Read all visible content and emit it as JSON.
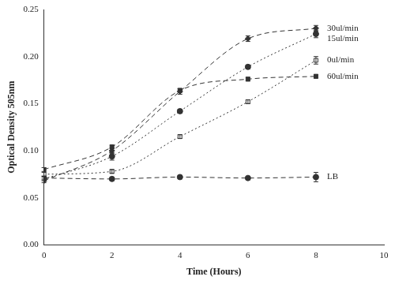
{
  "chart_data": {
    "type": "line",
    "x_label": "Time (Hours)",
    "y_label": "Optical Density 505nm",
    "xlim": [
      0,
      10
    ],
    "xticks": [
      0,
      2,
      4,
      6,
      8,
      10
    ],
    "ylim": [
      0,
      0.25
    ],
    "yticks": [
      {
        "value": 0,
        "label": "0.00"
      },
      {
        "value": 0.05,
        "label": "0.05"
      },
      {
        "value": 0.1,
        "label": "0.10"
      },
      {
        "value": 0.15,
        "label": "0.15"
      },
      {
        "value": 0.2,
        "label": "0.20"
      },
      {
        "value": 0.25,
        "label": "0.25"
      }
    ],
    "grid": false,
    "x": [
      0,
      2,
      4,
      6,
      8
    ],
    "series": [
      {
        "name": "30ul/min",
        "color": "#333333",
        "marker": "diamond",
        "line_style": "dashed",
        "values": [
          0.068,
          0.1,
          0.163,
          0.219,
          0.23
        ],
        "errors": [
          0.002,
          0.003,
          0.003,
          0.003,
          0.003
        ]
      },
      {
        "name": "15ul/min",
        "color": "#333333",
        "marker": "circle",
        "line_style": "dotted",
        "values": [
          0.07,
          0.094,
          0.142,
          0.189,
          0.224
        ],
        "errors": [
          0.002,
          0.004,
          0.002,
          0.002,
          0.004
        ]
      },
      {
        "name": "0ul/min",
        "color": "#333333",
        "marker": "open_square",
        "line_style": "dotted",
        "values": [
          0.075,
          0.078,
          0.115,
          0.152,
          0.196
        ],
        "errors": [
          0.002,
          0.002,
          0.002,
          0.002,
          0.004
        ]
      },
      {
        "name": "60ul/min",
        "color": "#333333",
        "marker": "square",
        "line_style": "dashed",
        "values": [
          0.08,
          0.104,
          0.164,
          0.176,
          0.179
        ],
        "errors": [
          0.002,
          0.002,
          0.002,
          0.002,
          0.002
        ]
      },
      {
        "name": "LB",
        "color": "#333333",
        "marker": "circle",
        "line_style": "dashed",
        "values": [
          0.071,
          0.07,
          0.072,
          0.071,
          0.072
        ],
        "errors": [
          0.002,
          0.001,
          0.001,
          0.001,
          0.005
        ]
      }
    ]
  }
}
